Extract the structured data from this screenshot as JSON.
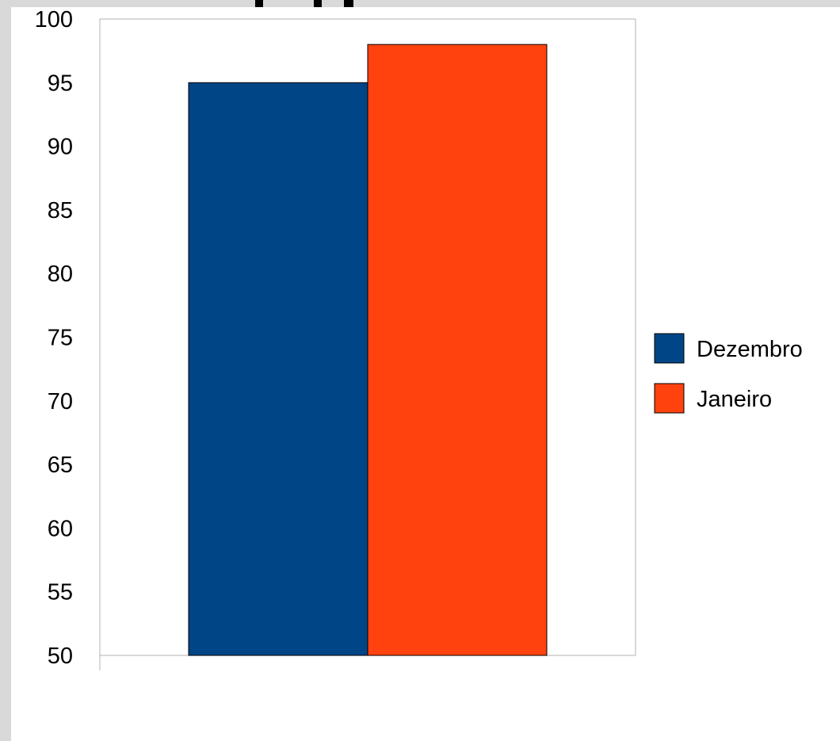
{
  "chart_data": {
    "type": "bar",
    "categories": [
      ""
    ],
    "series": [
      {
        "name": "Dezembro",
        "values": [
          95
        ],
        "color": "#004586"
      },
      {
        "name": "Janeiro",
        "values": [
          98
        ],
        "color": "#ff420e"
      }
    ],
    "ylim": [
      50,
      100
    ],
    "yticks": [
      50,
      55,
      60,
      65,
      70,
      75,
      80,
      85,
      90,
      95,
      100
    ],
    "grid": false,
    "legend_position": "right"
  }
}
